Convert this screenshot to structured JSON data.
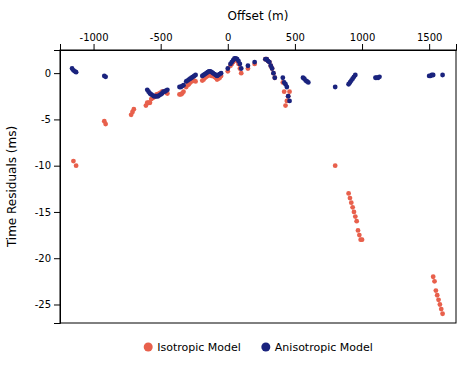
{
  "chart_data": {
    "type": "scatter",
    "xlabel": "Offset (m)",
    "ylabel": "Time Residuals (ms)",
    "xlim": [
      -1250,
      1700
    ],
    "ylim": [
      -27,
      2.5
    ],
    "xticks": [
      -1000,
      -500,
      0,
      500,
      1000,
      1500
    ],
    "yticks": [
      0,
      -5,
      -10,
      -15,
      -20,
      -25
    ],
    "grid": false,
    "legend": "bottom",
    "series": [
      {
        "name": "Isotropic Model",
        "color": "#E8604C",
        "x": [
          -1150,
          -1130,
          -920,
          -910,
          -720,
          -710,
          -700,
          -610,
          -600,
          -590,
          -580,
          -570,
          -560,
          -550,
          -540,
          -530,
          -520,
          -510,
          -500,
          -490,
          -480,
          -470,
          -460,
          -450,
          -360,
          -350,
          -340,
          -330,
          -310,
          -300,
          -290,
          -280,
          -270,
          -260,
          -250,
          -240,
          -190,
          -180,
          -170,
          -160,
          -150,
          -140,
          -130,
          -120,
          -110,
          -100,
          -90,
          -80,
          -70,
          -60,
          -50,
          0,
          20,
          30,
          40,
          50,
          60,
          70,
          80,
          90,
          100,
          150,
          200,
          280,
          290,
          300,
          310,
          320,
          330,
          340,
          350,
          410,
          420,
          430,
          440,
          450,
          460,
          800,
          900,
          910,
          920,
          930,
          940,
          950,
          960,
          970,
          980,
          990,
          1000,
          1530,
          1540,
          1550,
          1560,
          1570,
          1580,
          1590,
          1600
        ],
        "values": [
          -9.5,
          -10.0,
          -5.2,
          -5.5,
          -4.5,
          -4.2,
          -3.9,
          -3.5,
          -3.2,
          -3.2,
          -3.2,
          -2.8,
          -2.7,
          -2.6,
          -2.5,
          -2.3,
          -2.3,
          -2.2,
          -2.1,
          -2.0,
          -2.0,
          -2.0,
          -2.1,
          -2.2,
          -2.3,
          -2.3,
          -2.2,
          -2.0,
          -1.5,
          -1.3,
          -1.2,
          -1.0,
          -0.9,
          -0.8,
          -0.8,
          -0.9,
          -0.8,
          -0.7,
          -0.5,
          -0.4,
          -0.3,
          -0.2,
          -0.2,
          -0.3,
          -0.3,
          -0.4,
          -0.5,
          -0.7,
          -0.6,
          -0.5,
          -0.3,
          0.2,
          0.8,
          1.0,
          1.2,
          1.5,
          1.5,
          1.3,
          1.0,
          0.5,
          0.0,
          0.5,
          1.0,
          1.5,
          1.5,
          1.3,
          1.2,
          0.8,
          0.5,
          0.0,
          -0.5,
          -1.0,
          -2.0,
          -3.5,
          -3.0,
          -2.5,
          -2.0,
          -10.0,
          -13.0,
          -13.5,
          -14.0,
          -14.5,
          -15.0,
          -15.5,
          -16.0,
          -17.0,
          -17.5,
          -18.0,
          -18.0,
          -22.0,
          -22.5,
          -23.5,
          -24.0,
          -24.5,
          -25.0,
          -25.5,
          -26.0
        ]
      },
      {
        "name": "Anisotropic Model",
        "color": "#1A237E",
        "x": [
          -1160,
          -1150,
          -1140,
          -1130,
          -920,
          -910,
          -600,
          -590,
          -580,
          -570,
          -560,
          -550,
          -540,
          -530,
          -520,
          -510,
          -500,
          -490,
          -480,
          -470,
          -460,
          -450,
          -360,
          -350,
          -340,
          -330,
          -310,
          -300,
          -290,
          -280,
          -270,
          -260,
          -250,
          -240,
          -190,
          -180,
          -170,
          -160,
          -150,
          -140,
          -130,
          -120,
          -110,
          -100,
          -90,
          -80,
          -70,
          -60,
          -50,
          0,
          20,
          30,
          40,
          50,
          60,
          70,
          80,
          90,
          100,
          150,
          200,
          280,
          290,
          300,
          310,
          320,
          330,
          340,
          350,
          410,
          420,
          430,
          440,
          450,
          460,
          560,
          570,
          580,
          590,
          600,
          800,
          900,
          910,
          920,
          930,
          940,
          950,
          1100,
          1110,
          1120,
          1130,
          1500,
          1510,
          1520,
          1530,
          1600
        ],
        "values": [
          0.5,
          0.3,
          0.2,
          0.1,
          -0.3,
          -0.4,
          -1.8,
          -2.0,
          -2.2,
          -2.3,
          -2.4,
          -2.5,
          -2.5,
          -2.5,
          -2.5,
          -2.4,
          -2.3,
          -2.2,
          -2.0,
          -2.0,
          -1.9,
          -1.8,
          -1.5,
          -1.5,
          -1.4,
          -1.3,
          -0.9,
          -0.8,
          -0.7,
          -0.6,
          -0.5,
          -0.4,
          -0.3,
          -0.2,
          -0.3,
          -0.2,
          -0.1,
          0.0,
          0.1,
          0.2,
          0.2,
          0.1,
          0.0,
          -0.1,
          -0.2,
          -0.3,
          -0.2,
          -0.1,
          0.0,
          0.5,
          1.0,
          1.2,
          1.4,
          1.6,
          1.6,
          1.5,
          1.3,
          1.0,
          0.5,
          0.8,
          1.2,
          1.5,
          1.5,
          1.3,
          1.2,
          0.8,
          0.5,
          0.0,
          -0.5,
          -0.5,
          -1.0,
          -1.2,
          -1.5,
          -2.5,
          -3.0,
          -0.5,
          -0.6,
          -0.8,
          -0.9,
          -1.0,
          -1.5,
          -1.2,
          -1.0,
          -0.8,
          -0.6,
          -0.4,
          -0.2,
          -0.5,
          -0.5,
          -0.5,
          -0.4,
          -0.3,
          -0.3,
          -0.2,
          -0.2,
          -0.2
        ]
      }
    ]
  }
}
